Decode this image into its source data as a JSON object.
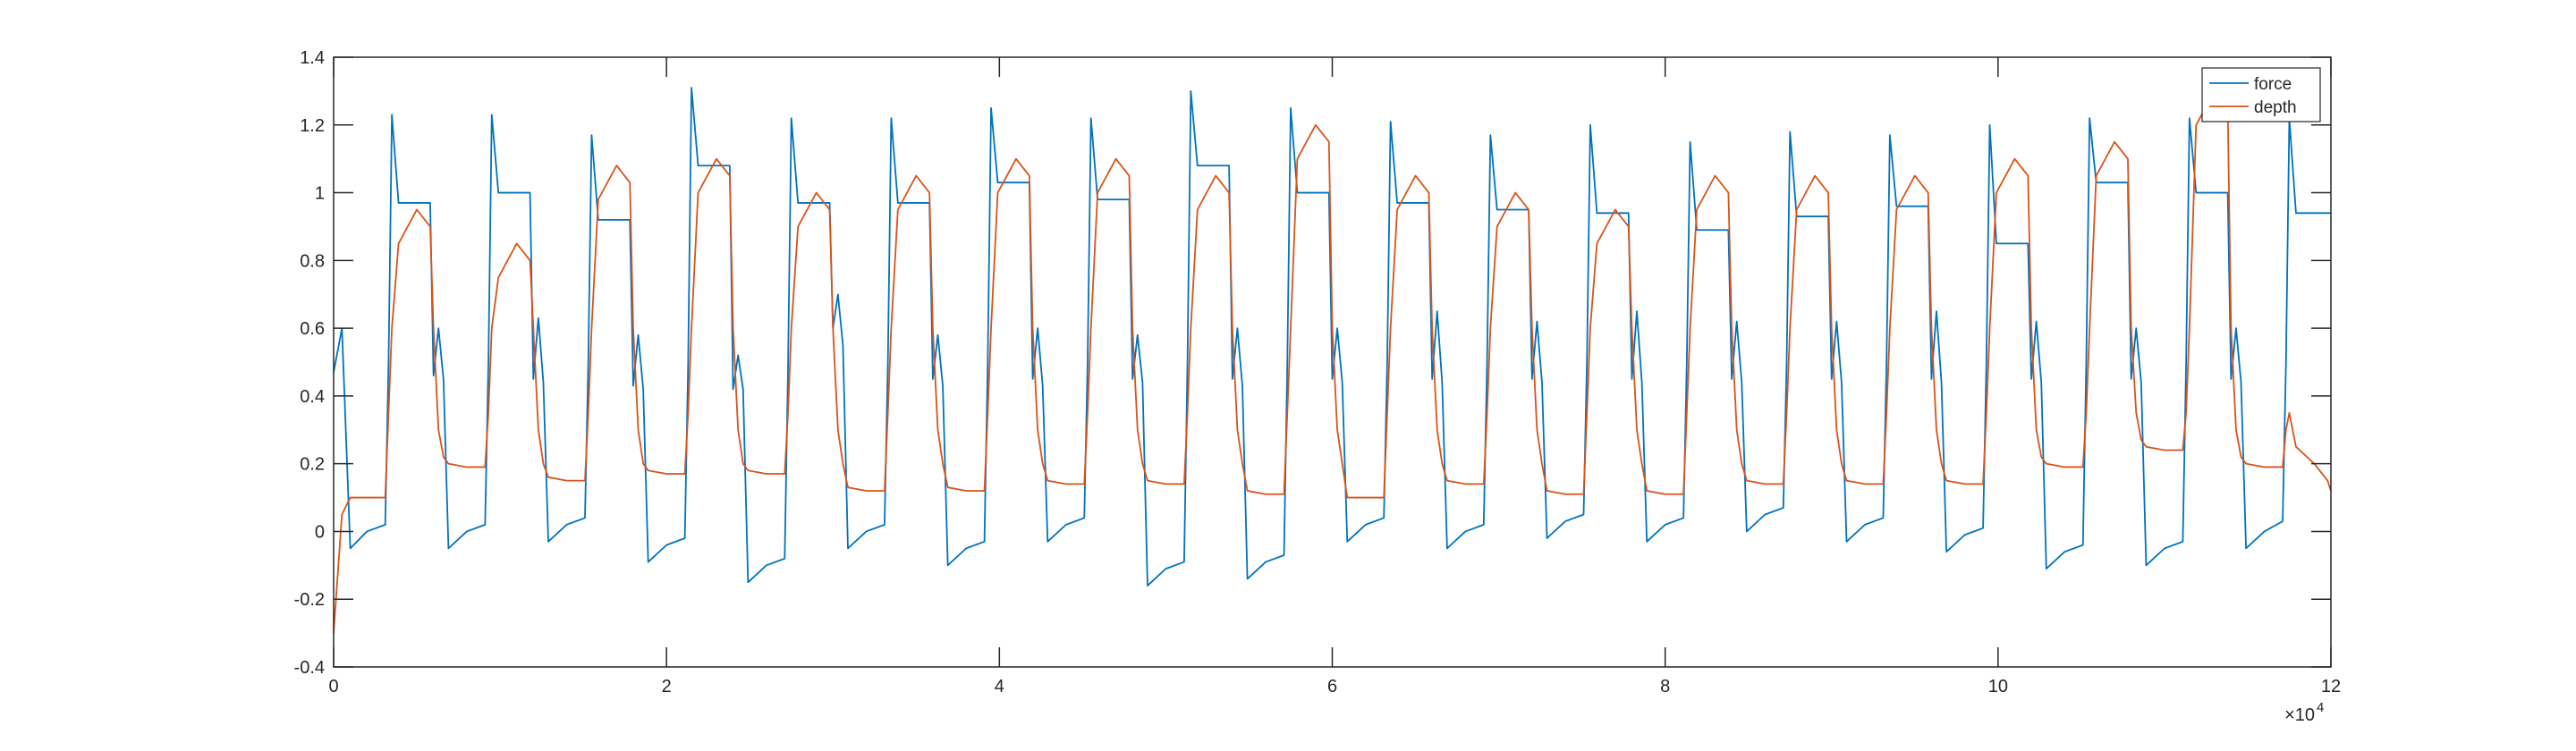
{
  "chart_data": {
    "type": "line",
    "x_multiplier": "×10",
    "x_multiplier_exponent": "4",
    "xlim": [
      0,
      120000
    ],
    "xticks": [
      0,
      {
        "value": 20000,
        "label": "2"
      },
      {
        "value": 40000,
        "label": "4"
      },
      {
        "value": 60000,
        "label": "6"
      },
      {
        "value": 80000,
        "label": "8"
      },
      {
        "value": 100000,
        "label": "10"
      },
      {
        "value": 120000,
        "label": "12"
      }
    ],
    "ylim": [
      -0.4,
      1.4
    ],
    "yticks": [
      -0.4,
      -0.2,
      0,
      0.2,
      0.4,
      0.6,
      0.8,
      1,
      1.2,
      1.4
    ],
    "grid": false,
    "legend": "northeast",
    "x": [
      0,
      500,
      1000,
      2000,
      3100,
      3300,
      3500,
      3900,
      5000,
      5800,
      6000,
      6300,
      6600,
      6900,
      8000,
      9100,
      9300,
      9500,
      9900,
      11000,
      11800,
      12000,
      12300,
      12600,
      12900,
      14000,
      15100,
      15300,
      15500,
      15900,
      17000,
      17800,
      18000,
      18300,
      18600,
      18900,
      20000,
      21100,
      21300,
      21500,
      21900,
      23000,
      23800,
      24000,
      24300,
      24600,
      24900,
      26000,
      27100,
      27300,
      27500,
      27900,
      29000,
      29800,
      30000,
      30300,
      30600,
      30900,
      32000,
      33100,
      33300,
      33500,
      33900,
      35000,
      35800,
      36000,
      36300,
      36600,
      36900,
      38000,
      39100,
      39300,
      39500,
      39900,
      41000,
      41800,
      42000,
      42300,
      42600,
      42900,
      44000,
      45100,
      45300,
      45500,
      45900,
      47000,
      47800,
      48000,
      48300,
      48600,
      48900,
      50000,
      51100,
      51300,
      51500,
      51900,
      53000,
      53800,
      54000,
      54300,
      54600,
      54900,
      56000,
      57100,
      57300,
      57500,
      57900,
      59000,
      59800,
      60000,
      60300,
      60600,
      60900,
      62000,
      63100,
      63300,
      63500,
      63900,
      65000,
      65800,
      66000,
      66300,
      66600,
      66900,
      68000,
      69100,
      69300,
      69500,
      69900,
      71000,
      71800,
      72000,
      72300,
      72600,
      72900,
      74000,
      75100,
      75300,
      75500,
      75900,
      77000,
      77800,
      78000,
      78300,
      78600,
      78900,
      80000,
      81100,
      81300,
      81500,
      81900,
      83000,
      83800,
      84000,
      84300,
      84600,
      84900,
      86000,
      87100,
      87300,
      87500,
      87900,
      89000,
      89800,
      90000,
      90300,
      90600,
      90900,
      92000,
      93100,
      93300,
      93500,
      93900,
      95000,
      95800,
      96000,
      96300,
      96600,
      96900,
      98000,
      99100,
      99300,
      99500,
      99900,
      101000,
      101800,
      102000,
      102300,
      102600,
      102900,
      104000,
      105100,
      105300,
      105500,
      105900,
      107000,
      107800,
      108000,
      108300,
      108600,
      108900,
      110000,
      111100,
      111300,
      111500,
      111900,
      113000,
      113800,
      114000,
      114300,
      114600,
      114900,
      116000,
      117100,
      117300,
      117500,
      117900,
      119000,
      119800,
      120000
    ],
    "series": [
      {
        "name": "force",
        "color": "#0072BD",
        "values": [
          0.47,
          0.6,
          -0.05,
          0.0,
          0.02,
          0.5,
          1.23,
          0.97,
          0.97,
          0.97,
          0.46,
          0.6,
          0.45,
          -0.05,
          0.0,
          0.02,
          0.5,
          1.23,
          1.0,
          1.0,
          1.0,
          0.45,
          0.63,
          0.44,
          -0.03,
          0.02,
          0.04,
          0.5,
          1.17,
          0.92,
          0.92,
          0.92,
          0.43,
          0.58,
          0.42,
          -0.09,
          -0.04,
          -0.02,
          0.5,
          1.31,
          1.08,
          1.08,
          1.08,
          0.42,
          0.52,
          0.42,
          -0.15,
          -0.1,
          -0.08,
          0.48,
          1.22,
          0.97,
          0.97,
          0.97,
          0.6,
          0.7,
          0.55,
          -0.05,
          0.0,
          0.02,
          0.5,
          1.22,
          0.97,
          0.97,
          0.97,
          0.45,
          0.58,
          0.43,
          -0.1,
          -0.05,
          -0.03,
          0.5,
          1.25,
          1.03,
          1.03,
          1.03,
          0.45,
          0.6,
          0.43,
          -0.03,
          0.02,
          0.04,
          0.5,
          1.22,
          0.98,
          0.98,
          0.98,
          0.45,
          0.58,
          0.44,
          -0.16,
          -0.11,
          -0.09,
          0.5,
          1.3,
          1.08,
          1.08,
          1.08,
          0.45,
          0.6,
          0.43,
          -0.14,
          -0.09,
          -0.07,
          0.5,
          1.25,
          1.0,
          1.0,
          1.0,
          0.45,
          0.6,
          0.44,
          -0.03,
          0.02,
          0.04,
          0.5,
          1.21,
          0.97,
          0.97,
          0.97,
          0.45,
          0.65,
          0.44,
          -0.05,
          0.0,
          0.02,
          0.5,
          1.17,
          0.95,
          0.95,
          0.95,
          0.45,
          0.62,
          0.44,
          -0.02,
          0.03,
          0.05,
          0.5,
          1.2,
          0.94,
          0.94,
          0.94,
          0.45,
          0.65,
          0.44,
          -0.03,
          0.02,
          0.04,
          0.5,
          1.15,
          0.89,
          0.89,
          0.89,
          0.45,
          0.62,
          0.44,
          0.0,
          0.05,
          0.07,
          0.5,
          1.18,
          0.93,
          0.93,
          0.93,
          0.45,
          0.62,
          0.44,
          -0.03,
          0.02,
          0.04,
          0.5,
          1.17,
          0.96,
          0.96,
          0.96,
          0.45,
          0.65,
          0.44,
          -0.06,
          -0.01,
          0.01,
          0.5,
          1.2,
          0.85,
          0.85,
          0.85,
          0.45,
          0.62,
          0.44,
          -0.11,
          -0.06,
          -0.04,
          0.5,
          1.22,
          1.03,
          1.03,
          1.03,
          0.45,
          0.6,
          0.44,
          -0.1,
          -0.05,
          -0.03,
          0.5,
          1.22,
          1.0,
          1.0,
          1.0,
          0.45,
          0.6,
          0.44,
          -0.05,
          0.0,
          0.03,
          0.5,
          1.22,
          0.94,
          0.94,
          0.94,
          0.94
        ]
      },
      {
        "name": "depth",
        "color": "#D95319",
        "values": [
          -0.3,
          0.05,
          0.1,
          0.1,
          0.1,
          0.35,
          0.6,
          0.85,
          0.95,
          0.9,
          0.6,
          0.3,
          0.22,
          0.2,
          0.19,
          0.19,
          0.35,
          0.6,
          0.75,
          0.85,
          0.8,
          0.6,
          0.3,
          0.2,
          0.16,
          0.15,
          0.15,
          0.35,
          0.6,
          0.98,
          1.08,
          1.03,
          0.6,
          0.3,
          0.2,
          0.18,
          0.17,
          0.17,
          0.35,
          0.6,
          1.0,
          1.1,
          1.05,
          0.6,
          0.3,
          0.2,
          0.18,
          0.17,
          0.17,
          0.35,
          0.6,
          0.9,
          1.0,
          0.95,
          0.6,
          0.3,
          0.2,
          0.13,
          0.12,
          0.12,
          0.35,
          0.6,
          0.95,
          1.05,
          1.0,
          0.6,
          0.3,
          0.2,
          0.13,
          0.12,
          0.12,
          0.35,
          0.6,
          1.0,
          1.1,
          1.05,
          0.6,
          0.3,
          0.2,
          0.15,
          0.14,
          0.14,
          0.35,
          0.6,
          1.0,
          1.1,
          1.05,
          0.6,
          0.3,
          0.2,
          0.15,
          0.14,
          0.14,
          0.35,
          0.6,
          0.95,
          1.05,
          1.0,
          0.6,
          0.3,
          0.2,
          0.12,
          0.11,
          0.11,
          0.35,
          0.6,
          1.1,
          1.2,
          1.15,
          0.6,
          0.3,
          0.2,
          0.1,
          0.1,
          0.1,
          0.35,
          0.6,
          0.95,
          1.05,
          1.0,
          0.6,
          0.3,
          0.2,
          0.15,
          0.14,
          0.14,
          0.35,
          0.6,
          0.9,
          1.0,
          0.95,
          0.6,
          0.3,
          0.2,
          0.12,
          0.11,
          0.11,
          0.35,
          0.6,
          0.85,
          0.95,
          0.9,
          0.6,
          0.3,
          0.2,
          0.12,
          0.11,
          0.11,
          0.35,
          0.6,
          0.95,
          1.05,
          1.0,
          0.6,
          0.3,
          0.2,
          0.15,
          0.14,
          0.14,
          0.35,
          0.6,
          0.95,
          1.05,
          1.0,
          0.6,
          0.3,
          0.2,
          0.15,
          0.14,
          0.14,
          0.35,
          0.6,
          0.95,
          1.05,
          1.0,
          0.6,
          0.3,
          0.2,
          0.15,
          0.14,
          0.14,
          0.35,
          0.6,
          1.0,
          1.1,
          1.05,
          0.6,
          0.3,
          0.22,
          0.2,
          0.19,
          0.19,
          0.35,
          0.6,
          1.05,
          1.15,
          1.1,
          0.6,
          0.35,
          0.27,
          0.25,
          0.24,
          0.24,
          0.35,
          0.6,
          1.2,
          1.3,
          1.25,
          0.6,
          0.3,
          0.22,
          0.2,
          0.19,
          0.19,
          0.3,
          0.35,
          0.25,
          0.2,
          0.15,
          0.12
        ]
      }
    ]
  }
}
